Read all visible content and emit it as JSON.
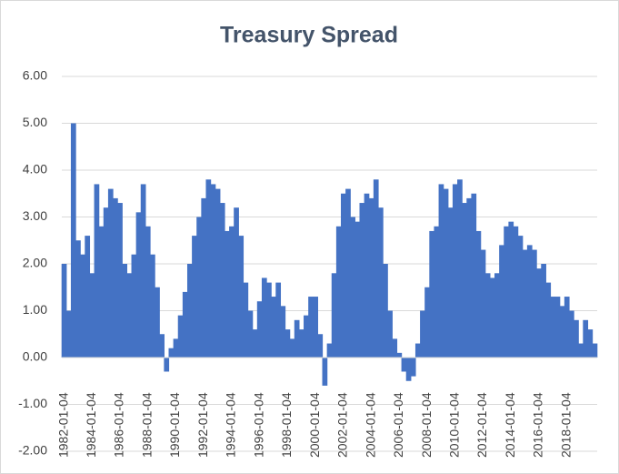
{
  "chart_data": {
    "type": "bar",
    "title": "Treasury Spread",
    "color": "#4472c4",
    "grid": true,
    "ylim": [
      -2,
      6
    ],
    "yticks": [
      {
        "value": -2,
        "label": "-2.00"
      },
      {
        "value": -1,
        "label": "-1.00"
      },
      {
        "value": 0,
        "label": "0.00"
      },
      {
        "value": 1,
        "label": "1.00"
      },
      {
        "value": 2,
        "label": "2.00"
      },
      {
        "value": 3,
        "label": "3.00"
      },
      {
        "value": 4,
        "label": "4.00"
      },
      {
        "value": 5,
        "label": "5.00"
      },
      {
        "value": 6,
        "label": "6.00"
      }
    ],
    "categories": [
      "1982-01-04",
      null,
      null,
      null,
      null,
      null,
      "1984-01-04",
      null,
      null,
      null,
      null,
      null,
      "1986-01-04",
      null,
      null,
      null,
      null,
      null,
      "1988-01-04",
      null,
      null,
      null,
      null,
      null,
      "1990-01-04",
      null,
      null,
      null,
      null,
      null,
      "1992-01-04",
      null,
      null,
      null,
      null,
      null,
      "1994-01-04",
      null,
      null,
      null,
      null,
      null,
      "1996-01-04",
      null,
      null,
      null,
      null,
      null,
      "1998-01-04",
      null,
      null,
      null,
      null,
      null,
      "2000-01-04",
      null,
      null,
      null,
      null,
      null,
      "2002-01-04",
      null,
      null,
      null,
      null,
      null,
      "2004-01-04",
      null,
      null,
      null,
      null,
      null,
      "2006-01-04",
      null,
      null,
      null,
      null,
      null,
      "2008-01-04",
      null,
      null,
      null,
      null,
      null,
      "2010-01-04",
      null,
      null,
      null,
      null,
      null,
      "2012-01-04",
      null,
      null,
      null,
      null,
      null,
      "2014-01-04",
      null,
      null,
      null,
      null,
      null,
      "2016-01-04",
      null,
      null,
      null,
      null,
      null,
      "2018-01-04",
      null,
      null,
      null,
      null,
      null,
      null
    ],
    "values": [
      2.0,
      1.0,
      5.0,
      2.5,
      2.2,
      2.6,
      1.8,
      3.7,
      2.8,
      3.2,
      3.6,
      3.4,
      3.3,
      2.0,
      1.8,
      2.2,
      3.1,
      3.7,
      2.8,
      2.2,
      1.5,
      0.5,
      -0.3,
      0.2,
      0.4,
      0.9,
      1.4,
      2.0,
      2.6,
      3.0,
      3.4,
      3.8,
      3.7,
      3.6,
      3.3,
      2.7,
      2.8,
      3.2,
      2.6,
      1.6,
      1.0,
      0.6,
      1.2,
      1.7,
      1.6,
      1.3,
      1.6,
      1.1,
      0.6,
      0.4,
      0.8,
      0.6,
      0.9,
      1.3,
      1.3,
      0.5,
      -0.6,
      0.3,
      1.8,
      2.8,
      3.5,
      3.6,
      3.0,
      2.9,
      3.3,
      3.5,
      3.4,
      3.8,
      3.2,
      2.0,
      1.0,
      0.4,
      0.1,
      -0.3,
      -0.5,
      -0.4,
      0.3,
      1.0,
      1.5,
      2.7,
      2.8,
      3.7,
      3.6,
      3.2,
      3.7,
      3.8,
      3.3,
      3.4,
      3.5,
      2.7,
      2.3,
      1.8,
      1.7,
      1.8,
      2.4,
      2.8,
      2.9,
      2.8,
      2.6,
      2.3,
      2.4,
      2.3,
      1.9,
      2.0,
      1.6,
      1.3,
      1.3,
      1.1,
      1.3,
      1.0,
      0.8,
      0.3,
      0.8,
      0.6,
      0.3
    ]
  }
}
